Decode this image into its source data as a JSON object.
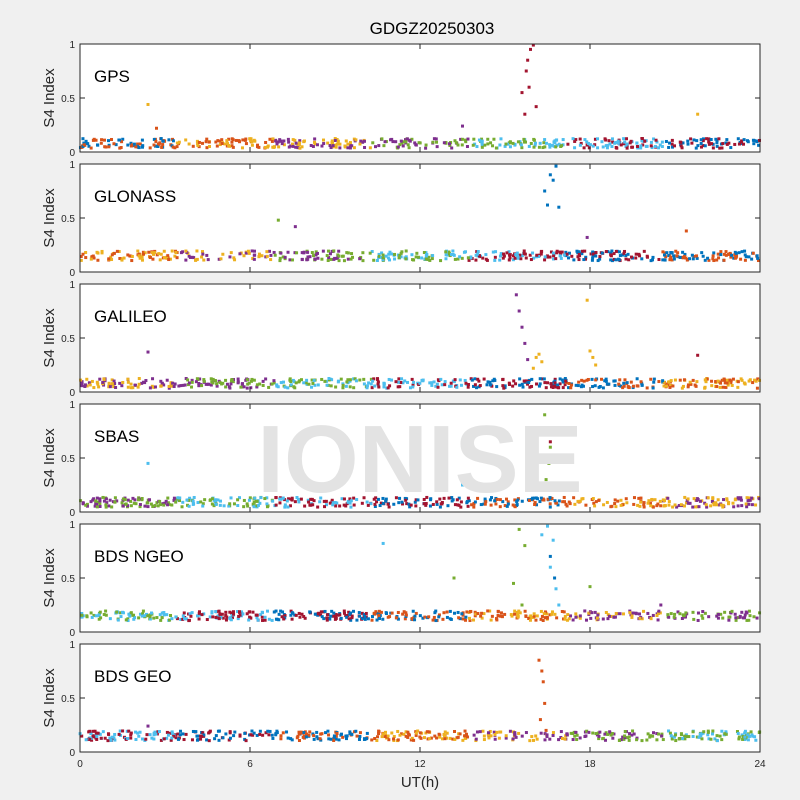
{
  "chart_data": {
    "type": "scatter",
    "title": "GDGZ20250303",
    "watermark": "IONISE",
    "xlabel": "UT(h)",
    "ylabel": "S4 Index",
    "xlim": [
      0,
      24
    ],
    "ylim": [
      0,
      1
    ],
    "xticks": [
      0,
      6,
      12,
      18,
      24
    ],
    "yticks": [
      0,
      0.5,
      1
    ],
    "palette": [
      "#0072BD",
      "#D95319",
      "#EDB120",
      "#7E2F8E",
      "#77AC30",
      "#4DBEEE",
      "#A2142F"
    ],
    "panels": [
      {
        "name": "GPS",
        "background_level": 0.08,
        "spikes": [
          {
            "x": [
              15.6,
              15.75,
              15.9,
              16.0,
              15.8,
              15.7,
              16.1,
              15.85
            ],
            "y": [
              0.55,
              0.75,
              0.95,
              0.99,
              0.85,
              0.35,
              0.42,
              0.6
            ],
            "color": "#A2142F"
          }
        ],
        "outliers": [
          {
            "x": [
              2.4
            ],
            "y": [
              0.44
            ],
            "color": "#EDB120"
          },
          {
            "x": [
              2.7
            ],
            "y": [
              0.22
            ],
            "color": "#D95319"
          },
          {
            "x": [
              13.5
            ],
            "y": [
              0.24
            ],
            "color": "#7E2F8E"
          },
          {
            "x": [
              21.8
            ],
            "y": [
              0.35
            ],
            "color": "#EDB120"
          }
        ]
      },
      {
        "name": "GLONASS",
        "background_level": 0.15,
        "spikes": [
          {
            "x": [
              16.4,
              16.6,
              16.8,
              16.5,
              16.7,
              16.9
            ],
            "y": [
              0.75,
              0.9,
              0.98,
              0.62,
              0.85,
              0.6
            ],
            "color": "#0072BD"
          }
        ],
        "outliers": [
          {
            "x": [
              7.0
            ],
            "y": [
              0.48
            ],
            "color": "#77AC30"
          },
          {
            "x": [
              7.6
            ],
            "y": [
              0.42
            ],
            "color": "#7E2F8E"
          },
          {
            "x": [
              17.9
            ],
            "y": [
              0.32
            ],
            "color": "#7E2F8E"
          },
          {
            "x": [
              21.4
            ],
            "y": [
              0.38
            ],
            "color": "#D95319"
          }
        ]
      },
      {
        "name": "GALILEO",
        "background_level": 0.08,
        "spikes": [
          {
            "x": [
              15.4,
              15.5,
              15.6,
              15.7,
              15.8
            ],
            "y": [
              0.9,
              0.75,
              0.6,
              0.45,
              0.3
            ],
            "color": "#7E2F8E"
          },
          {
            "x": [
              16.0,
              16.1,
              16.2,
              16.3
            ],
            "y": [
              0.22,
              0.32,
              0.35,
              0.28
            ],
            "color": "#EDB120"
          },
          {
            "x": [
              17.9,
              18.0,
              18.1,
              18.2
            ],
            "y": [
              0.85,
              0.38,
              0.32,
              0.25
            ],
            "color": "#EDB120"
          }
        ],
        "outliers": [
          {
            "x": [
              2.4
            ],
            "y": [
              0.37
            ],
            "color": "#7E2F8E"
          },
          {
            "x": [
              21.8
            ],
            "y": [
              0.34
            ],
            "color": "#A2142F"
          }
        ]
      },
      {
        "name": "SBAS",
        "background_level": 0.09,
        "spikes": [
          {
            "x": [
              16.4,
              16.5,
              16.6,
              16.55,
              16.45
            ],
            "y": [
              0.9,
              0.75,
              0.6,
              0.45,
              0.3
            ],
            "color": "#77AC30"
          },
          {
            "x": [
              16.5,
              16.6
            ],
            "y": [
              0.72,
              0.65
            ],
            "color": "#A2142F"
          }
        ],
        "outliers": [
          {
            "x": [
              2.4
            ],
            "y": [
              0.45
            ],
            "color": "#4DBEEE"
          },
          {
            "x": [
              13.5
            ],
            "y": [
              0.25
            ],
            "color": "#4DBEEE"
          }
        ]
      },
      {
        "name": "BDS NGEO",
        "background_level": 0.15,
        "spikes": [
          {
            "x": [
              15.5,
              15.7,
              15.3,
              15.6
            ],
            "y": [
              0.95,
              0.8,
              0.45,
              0.25
            ],
            "color": "#77AC30"
          },
          {
            "x": [
              16.3,
              16.5,
              16.7,
              16.6,
              16.8,
              16.9
            ],
            "y": [
              0.9,
              0.98,
              0.85,
              0.6,
              0.4,
              0.25
            ],
            "color": "#4DBEEE"
          },
          {
            "x": [
              16.6,
              16.75
            ],
            "y": [
              0.7,
              0.5
            ],
            "color": "#0072BD"
          }
        ],
        "outliers": [
          {
            "x": [
              10.7
            ],
            "y": [
              0.82
            ],
            "color": "#4DBEEE"
          },
          {
            "x": [
              13.2
            ],
            "y": [
              0.5
            ],
            "color": "#77AC30"
          },
          {
            "x": [
              18.0
            ],
            "y": [
              0.42
            ],
            "color": "#77AC30"
          },
          {
            "x": [
              20.5
            ],
            "y": [
              0.25
            ],
            "color": "#7E2F8E"
          }
        ]
      },
      {
        "name": "BDS GEO",
        "background_level": 0.15,
        "spikes": [
          {
            "x": [
              16.2,
              16.3,
              16.35,
              16.4,
              16.25,
              16.45
            ],
            "y": [
              0.85,
              0.75,
              0.65,
              0.45,
              0.3,
              0.2
            ],
            "color": "#D95319"
          }
        ],
        "outliers": [
          {
            "x": [
              2.4
            ],
            "y": [
              0.24
            ],
            "color": "#7E2F8E"
          }
        ]
      }
    ]
  }
}
